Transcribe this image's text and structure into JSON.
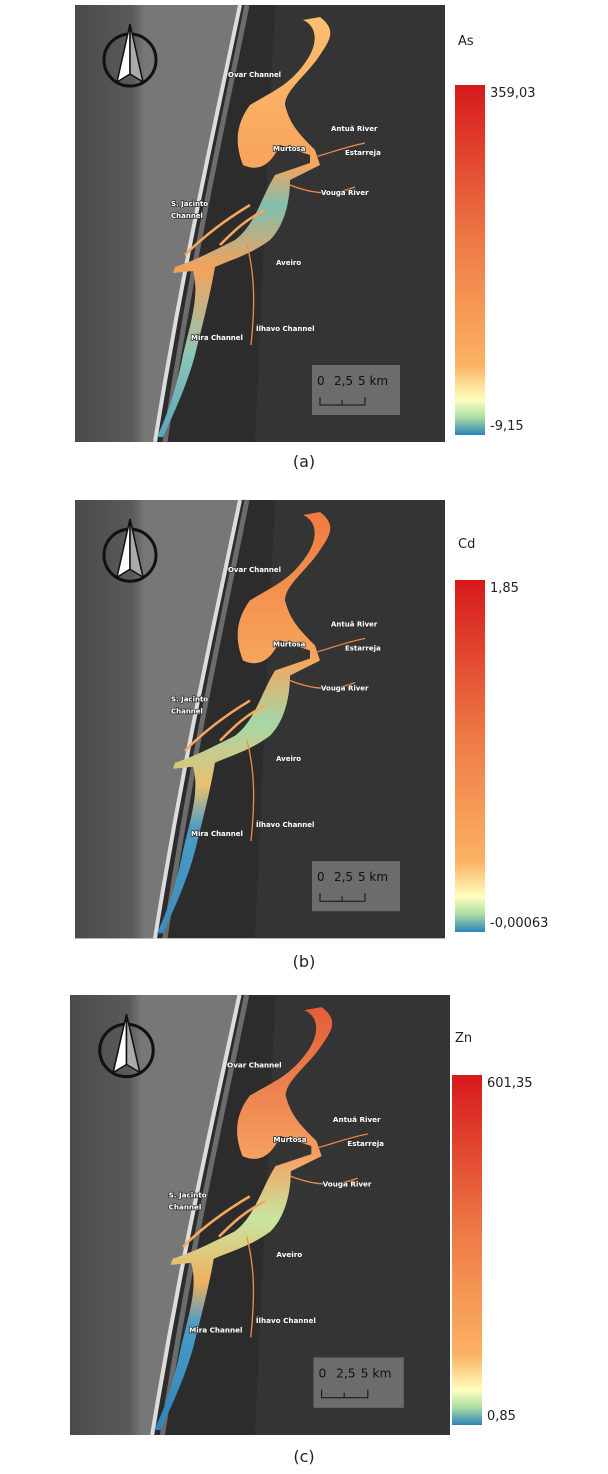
{
  "places": [
    "Ovar Channel",
    "Antuã River",
    "Murtosa",
    "Estarreja",
    "S. Jacinto",
    "Channel",
    "Vouga River",
    "Aveiro",
    "Mira Channel",
    "Ílhavo Channel"
  ],
  "scale_bar": [
    "0",
    "2,5",
    "5 km"
  ],
  "panels": [
    {
      "element": "As",
      "max": "359,03",
      "min": "-9,15",
      "caption": "(a)"
    },
    {
      "element": "Cd",
      "max": "1,85",
      "min": "-0,00063",
      "caption": "(b)"
    },
    {
      "element": "Zn",
      "max": "601,35",
      "min": "0,85",
      "caption": "(c)"
    }
  ]
}
